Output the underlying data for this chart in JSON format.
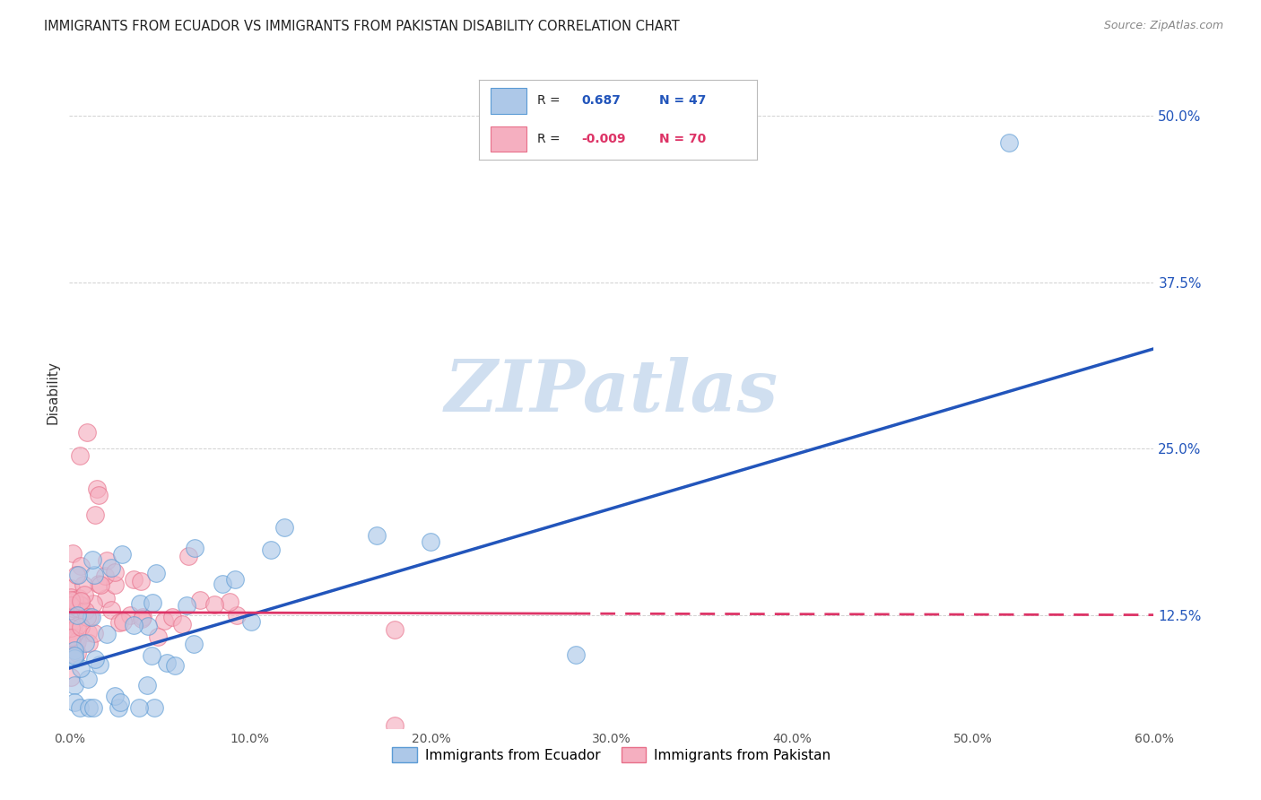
{
  "title": "IMMIGRANTS FROM ECUADOR VS IMMIGRANTS FROM PAKISTAN DISABILITY CORRELATION CHART",
  "source": "Source: ZipAtlas.com",
  "ylabel": "Disability",
  "xlim": [
    0.0,
    0.6
  ],
  "ylim": [
    0.04,
    0.545
  ],
  "xticks": [
    0.0,
    0.1,
    0.2,
    0.3,
    0.4,
    0.5,
    0.6
  ],
  "yticks": [
    0.125,
    0.25,
    0.375,
    0.5
  ],
  "ytick_labels": [
    "12.5%",
    "25.0%",
    "37.5%",
    "50.0%"
  ],
  "xtick_labels": [
    "0.0%",
    "10.0%",
    "20.0%",
    "30.0%",
    "40.0%",
    "50.0%",
    "60.0%"
  ],
  "ecuador_color": "#adc8e8",
  "pakistan_color": "#f5afc0",
  "ecuador_edge": "#5b9bd5",
  "pakistan_edge": "#e8708a",
  "ecuador_line_color": "#2255bb",
  "pakistan_line_color": "#dd3366",
  "watermark": "ZIPatlas",
  "watermark_color": "#d0dff0",
  "background_color": "#ffffff",
  "grid_color": "#cccccc",
  "ec_line_x0": 0.0,
  "ec_line_y0": 0.085,
  "ec_line_x1": 0.6,
  "ec_line_y1": 0.325,
  "pk_line_solid_x0": 0.0,
  "pk_line_solid_y0": 0.127,
  "pk_line_solid_x1": 0.28,
  "pk_line_solid_y1": 0.126,
  "pk_line_dash_x0": 0.28,
  "pk_line_dash_y0": 0.126,
  "pk_line_dash_x1": 0.6,
  "pk_line_dash_y1": 0.125
}
